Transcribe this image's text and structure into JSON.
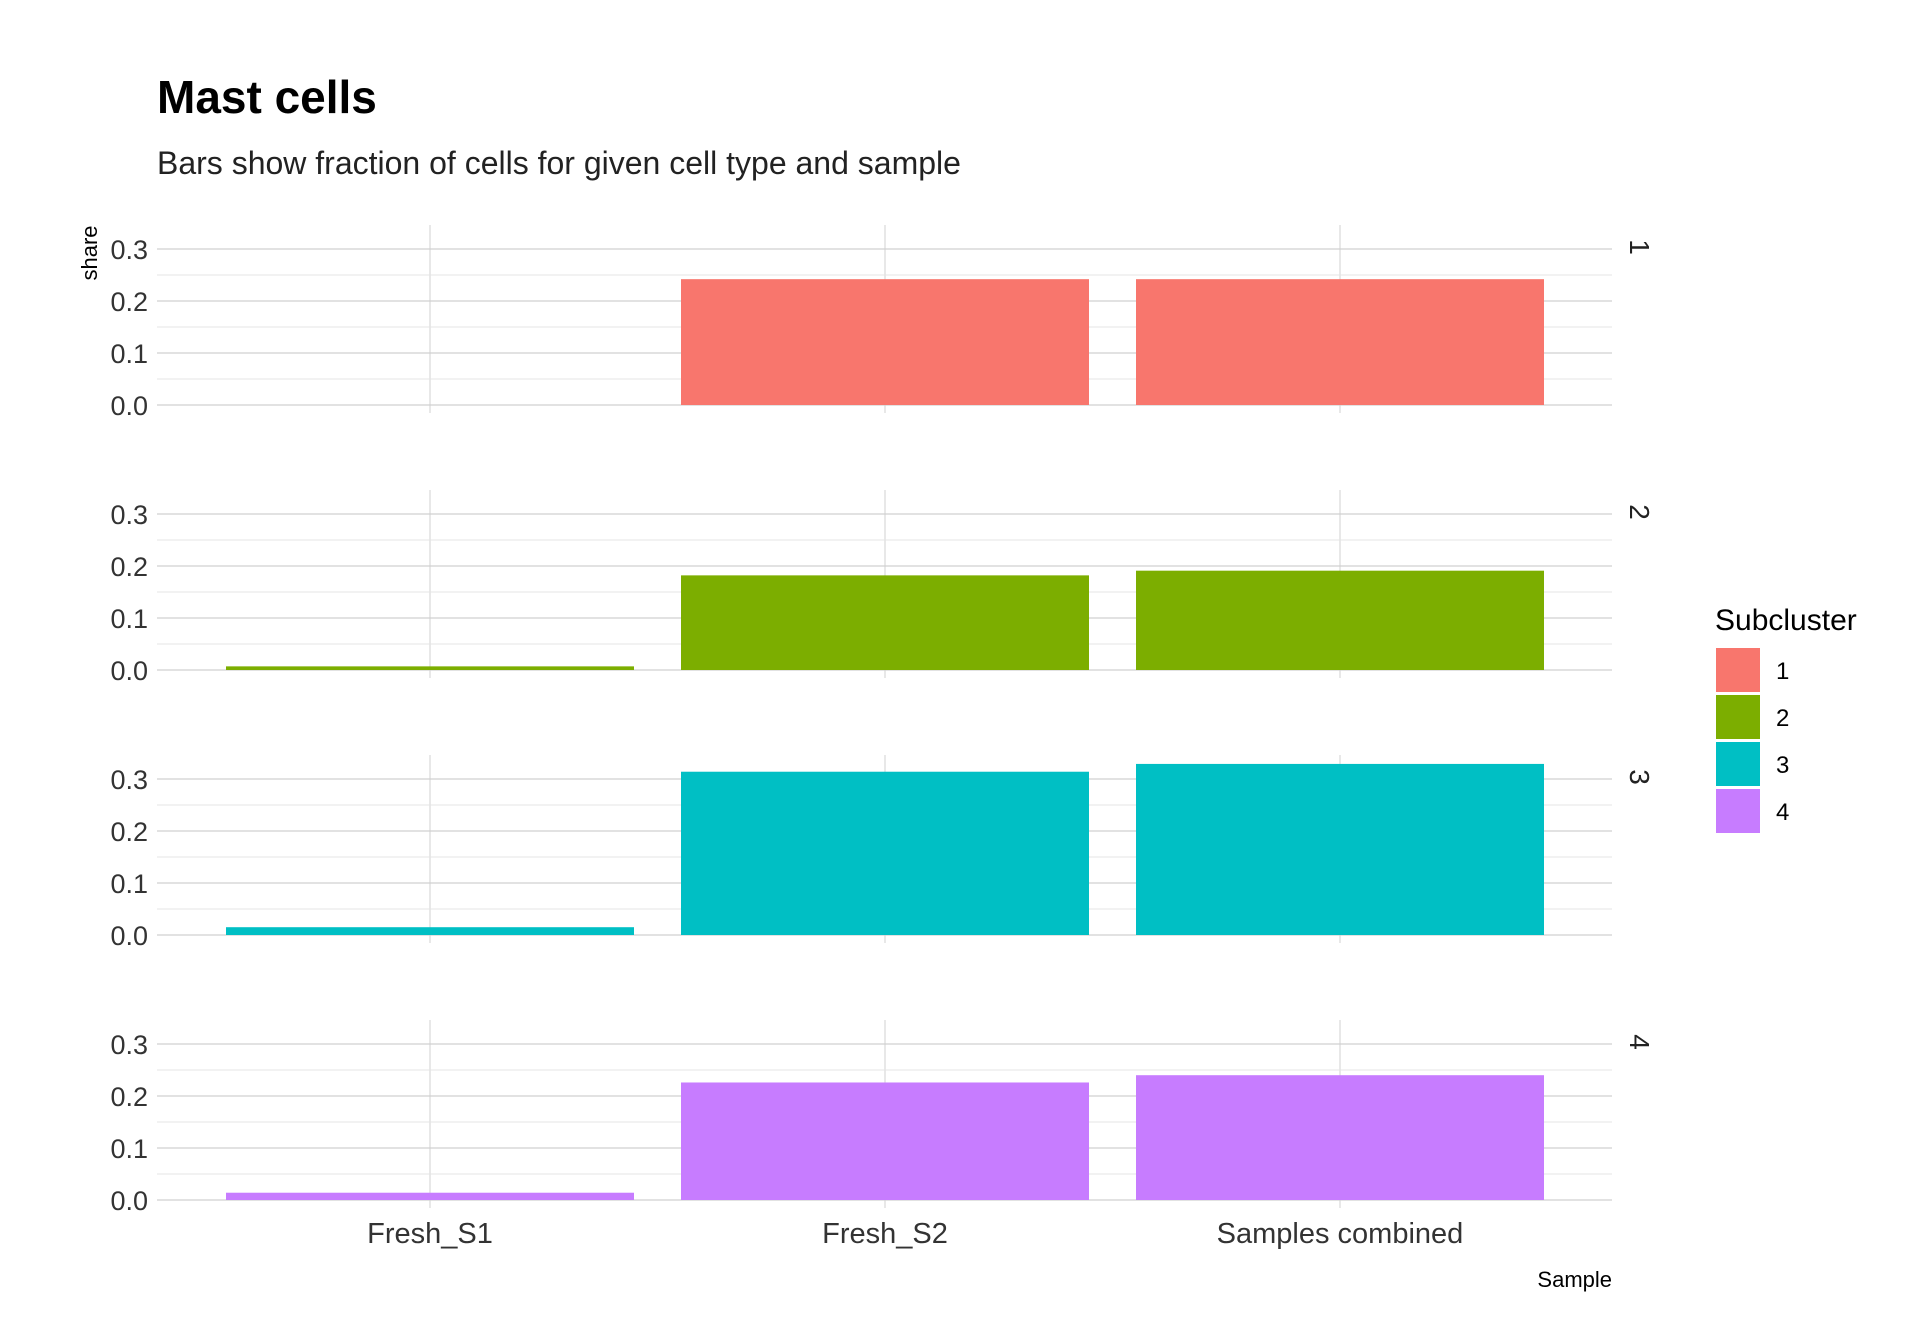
{
  "chart_data": {
    "type": "bar",
    "title": "Mast cells",
    "subtitle": "Bars show fraction of cells for given cell type and sample",
    "xlabel": "Sample",
    "ylabel": "share",
    "categories": [
      "Fresh_S1",
      "Fresh_S2",
      "Samples combined"
    ],
    "ylim": [
      0,
      0.34
    ],
    "yticks": [
      "0.0",
      "0.1",
      "0.2",
      "0.3"
    ],
    "grid": true,
    "legend": {
      "title": "Subcluster",
      "placement": "right"
    },
    "series": [
      {
        "name": "1",
        "facet_label": "1",
        "color": "#F8766D",
        "values": [
          0,
          0.242,
          0.242
        ]
      },
      {
        "name": "2",
        "facet_label": "2",
        "color": "#7CAE00",
        "values": [
          0.007,
          0.182,
          0.191
        ]
      },
      {
        "name": "3",
        "facet_label": "3",
        "color": "#00BFC4",
        "values": [
          0.015,
          0.314,
          0.329
        ]
      },
      {
        "name": "4",
        "facet_label": "4",
        "color": "#C77CFF",
        "values": [
          0.014,
          0.226,
          0.24
        ]
      }
    ]
  }
}
